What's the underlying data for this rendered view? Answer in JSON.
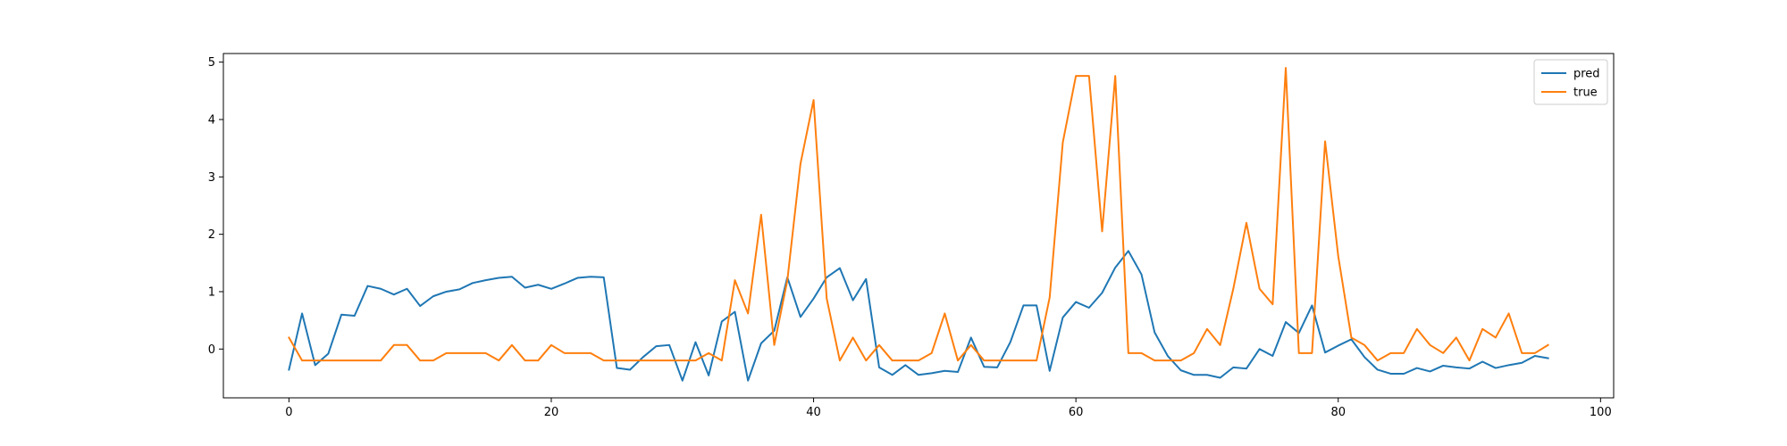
{
  "chart_data": {
    "type": "line",
    "title": "",
    "xlabel": "",
    "ylabel": "",
    "xlim": [
      -5,
      101
    ],
    "ylim": [
      -0.85,
      5.15
    ],
    "xticks": [
      0,
      20,
      40,
      60,
      80,
      100
    ],
    "yticks": [
      0,
      1,
      2,
      3,
      4,
      5
    ],
    "grid": false,
    "legend_position": "top-right",
    "x": [
      0,
      1,
      2,
      3,
      4,
      5,
      6,
      7,
      8,
      9,
      10,
      11,
      12,
      13,
      14,
      15,
      16,
      17,
      18,
      19,
      20,
      21,
      22,
      23,
      24,
      25,
      26,
      27,
      28,
      29,
      30,
      31,
      32,
      33,
      34,
      35,
      36,
      37,
      38,
      39,
      40,
      41,
      42,
      43,
      44,
      45,
      46,
      47,
      48,
      49,
      50,
      51,
      52,
      53,
      54,
      55,
      56,
      57,
      58,
      59,
      60,
      61,
      62,
      63,
      64,
      65,
      66,
      67,
      68,
      69,
      70,
      71,
      72,
      73,
      74,
      75,
      76,
      77,
      78,
      79,
      80,
      81,
      82,
      83,
      84,
      85,
      86,
      87,
      88,
      89,
      90,
      91,
      92,
      93,
      94,
      95,
      96
    ],
    "series": [
      {
        "name": "pred",
        "color": "#1f77b4",
        "values": [
          -0.36,
          0.62,
          -0.28,
          -0.08,
          0.6,
          0.58,
          1.1,
          1.05,
          0.95,
          1.05,
          0.75,
          0.92,
          1.0,
          1.04,
          1.15,
          1.2,
          1.24,
          1.26,
          1.07,
          1.12,
          1.05,
          1.14,
          1.24,
          1.26,
          1.25,
          -0.33,
          -0.36,
          -0.14,
          0.05,
          0.07,
          -0.55,
          0.12,
          -0.46,
          0.48,
          0.65,
          -0.55,
          0.1,
          0.32,
          1.25,
          0.56,
          0.88,
          1.25,
          1.41,
          0.85,
          1.22,
          -0.32,
          -0.45,
          -0.28,
          -0.45,
          -0.42,
          -0.38,
          -0.4,
          0.2,
          -0.31,
          -0.32,
          0.12,
          0.76,
          0.76,
          -0.38,
          0.55,
          0.82,
          0.72,
          0.98,
          1.42,
          1.71,
          1.3,
          0.29,
          -0.12,
          -0.37,
          -0.45,
          -0.45,
          -0.5,
          -0.32,
          -0.34,
          0.0,
          -0.12,
          0.47,
          0.28,
          0.76,
          -0.06,
          0.06,
          0.17,
          -0.14,
          -0.36,
          -0.43,
          -0.43,
          -0.33,
          -0.39,
          -0.29,
          -0.32,
          -0.34,
          -0.22,
          -0.33,
          -0.28,
          -0.24,
          -0.12,
          -0.16
        ]
      },
      {
        "name": "true",
        "color": "#ff7f0e",
        "values": [
          0.2,
          -0.2,
          -0.2,
          -0.2,
          -0.2,
          -0.2,
          -0.2,
          -0.2,
          0.07,
          0.07,
          -0.2,
          -0.2,
          -0.07,
          -0.07,
          -0.07,
          -0.07,
          -0.2,
          0.07,
          -0.2,
          -0.2,
          0.07,
          -0.07,
          -0.07,
          -0.07,
          -0.2,
          -0.2,
          -0.2,
          -0.2,
          -0.2,
          -0.2,
          -0.2,
          -0.2,
          -0.07,
          -0.2,
          1.2,
          0.62,
          2.34,
          0.07,
          1.2,
          3.23,
          4.34,
          0.88,
          -0.2,
          0.2,
          -0.2,
          0.07,
          -0.2,
          -0.2,
          -0.2,
          -0.07,
          0.62,
          -0.2,
          0.07,
          -0.2,
          -0.2,
          -0.2,
          -0.2,
          -0.2,
          0.9,
          3.6,
          4.76,
          4.76,
          2.05,
          4.76,
          -0.07,
          -0.07,
          -0.2,
          -0.2,
          -0.2,
          -0.07,
          0.35,
          0.07,
          1.05,
          2.2,
          1.05,
          0.78,
          4.9,
          -0.07,
          -0.07,
          3.62,
          1.62,
          0.2,
          0.07,
          -0.2,
          -0.07,
          -0.07,
          0.35,
          0.07,
          -0.07,
          0.2,
          -0.2,
          0.35,
          0.2,
          0.62,
          -0.07,
          -0.07,
          0.07
        ]
      }
    ]
  }
}
